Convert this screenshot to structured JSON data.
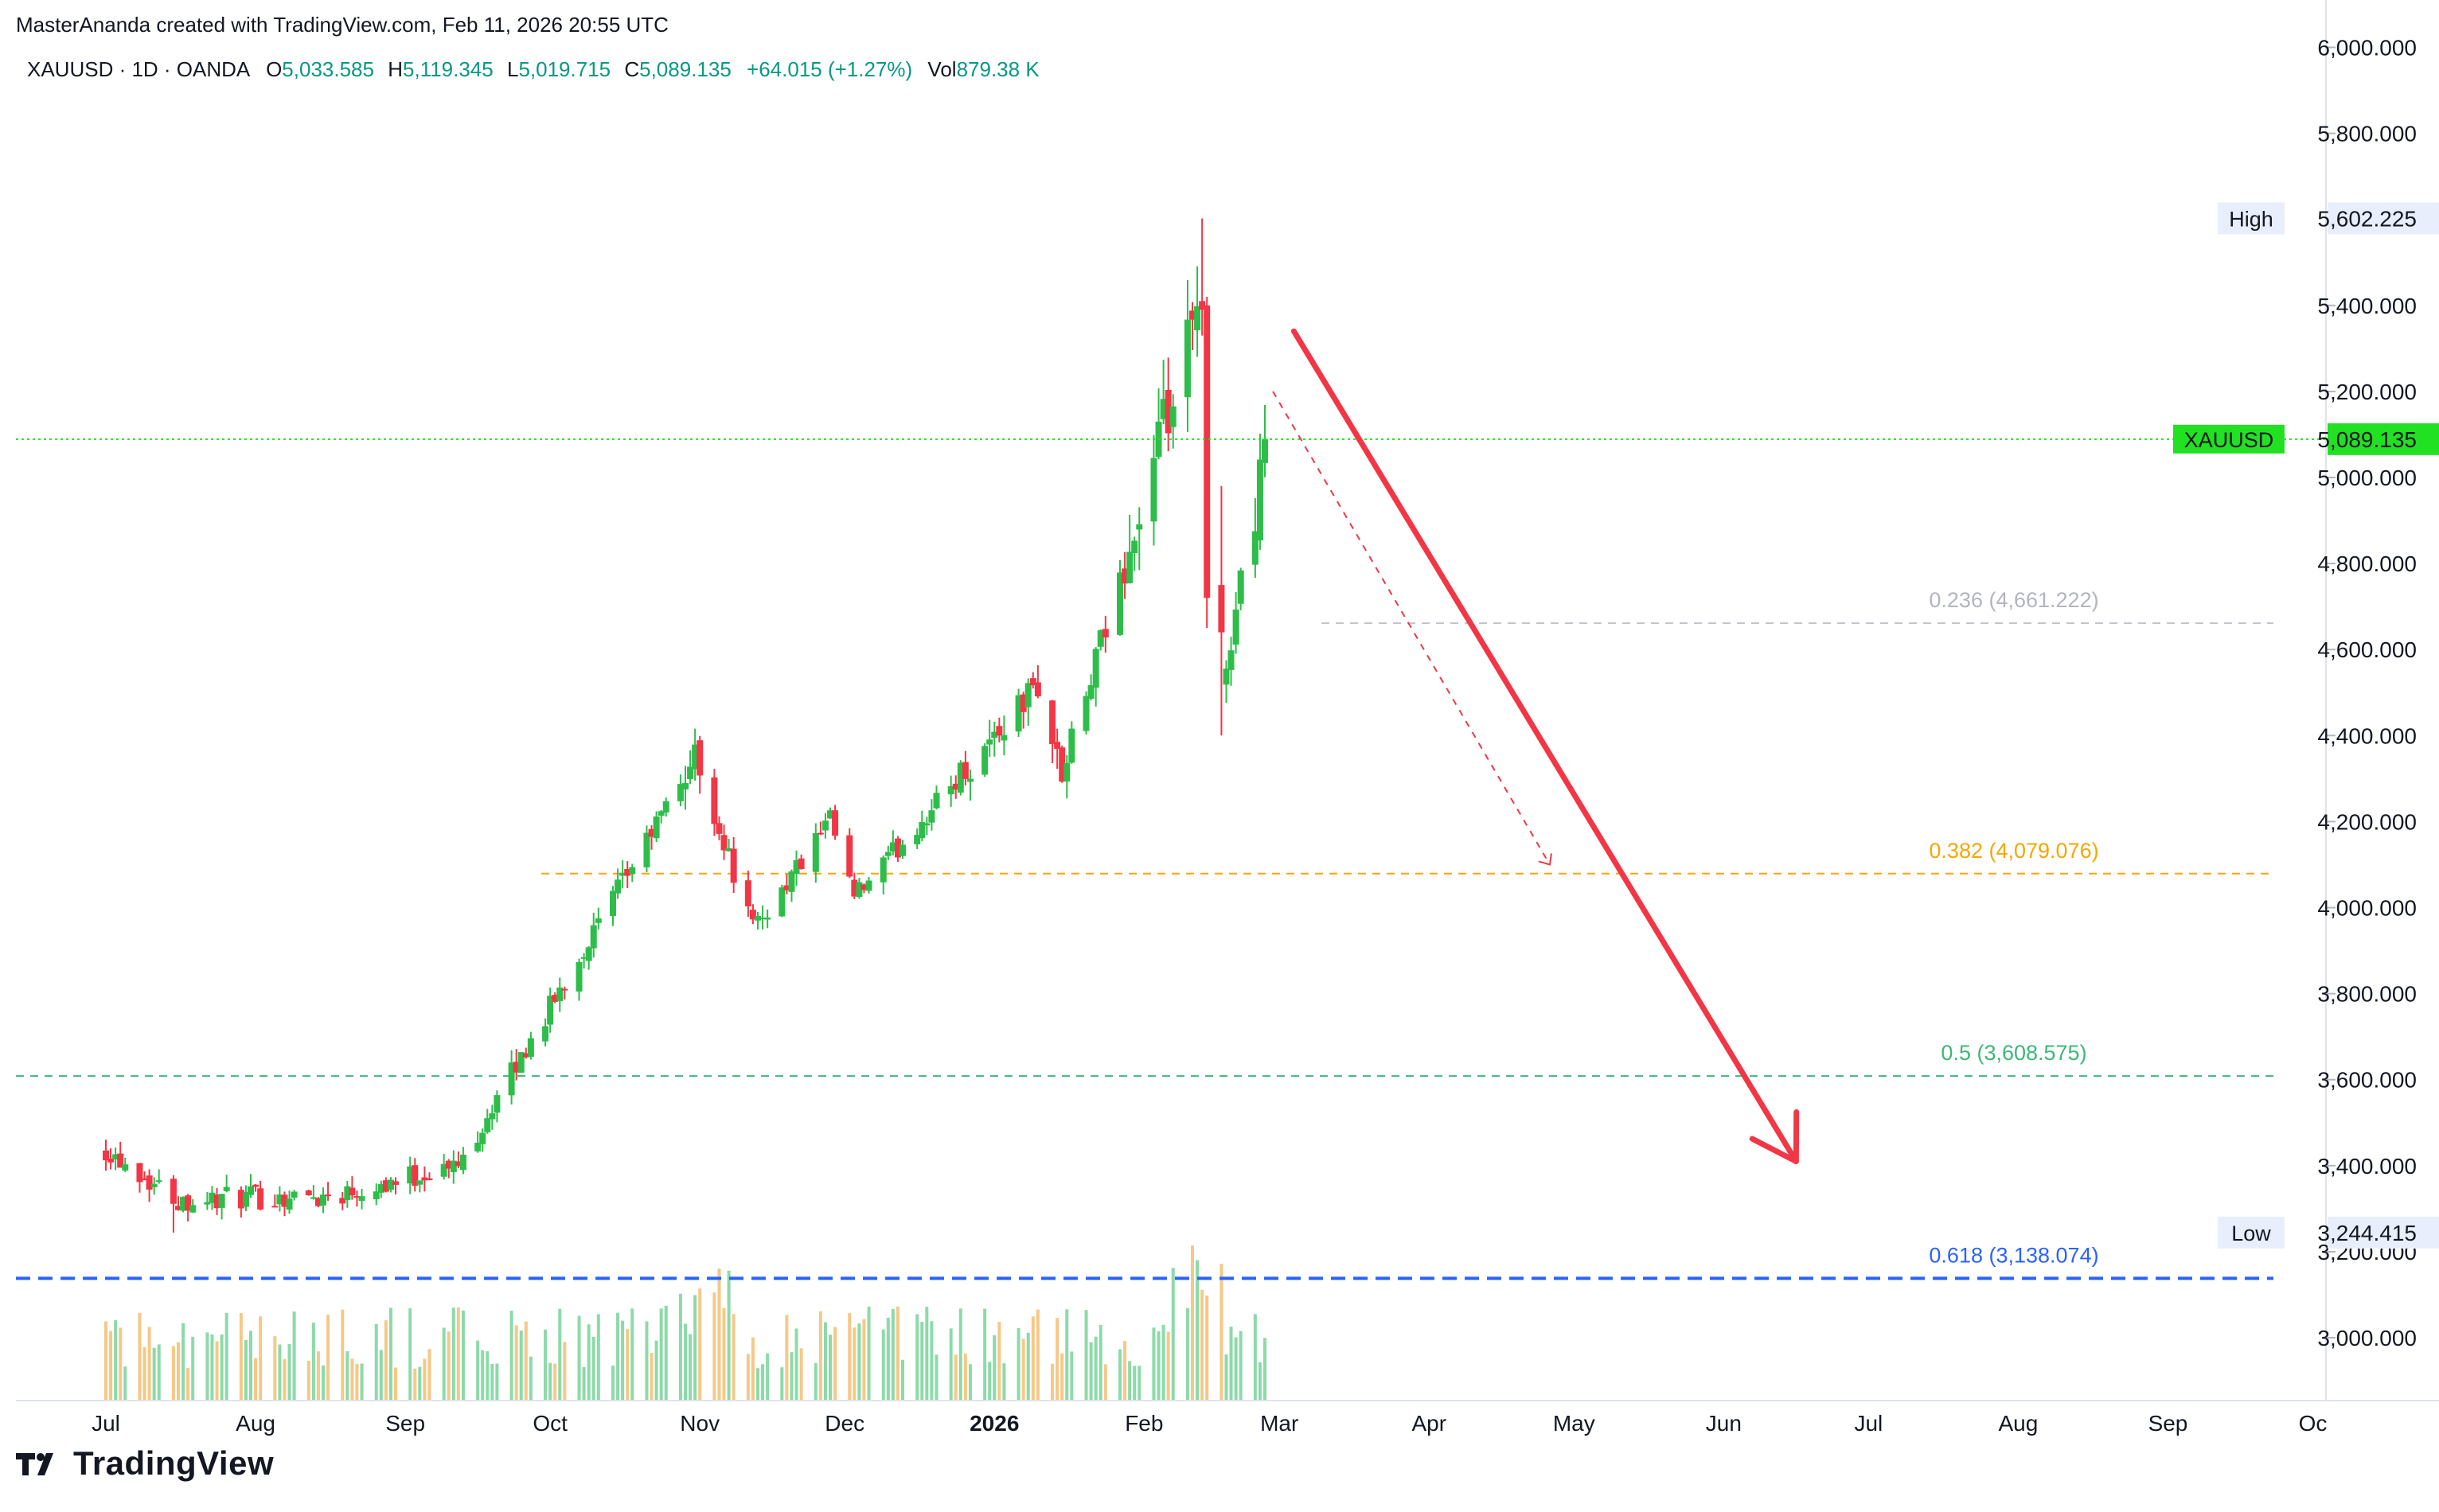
{
  "header": {
    "credit": "MasterAnanda created with TradingView.com, Feb 11, 2026 20:55 UTC",
    "symbol_line": "XAUUSD · 1D · OANDA",
    "o_label": "O",
    "o_value": "5,033.585",
    "h_label": "H",
    "h_value": "5,119.345",
    "l_label": "L",
    "l_value": "5,019.715",
    "c_label": "C",
    "c_value": "5,089.135",
    "change": "+64.015 (+1.27%)",
    "vol_label": "Vol",
    "vol_value": "879.38 K"
  },
  "brand": {
    "name": "TradingView"
  },
  "colors": {
    "up": "#22ab94",
    "up_candle": "#2ebd4a",
    "down": "#f23645",
    "arrow": "#f23645",
    "last_price": "#22e022",
    "fib_236": "#b2b5be",
    "fib_382": "#f7a600",
    "fib_500": "#3cb878",
    "fib_618": "#2962ff"
  },
  "chart_data": {
    "type": "candlestick",
    "title": "XAUUSD · 1D · OANDA",
    "y_axis": {
      "ylim": [
        2850,
        6000
      ],
      "ticks": [
        "6,000.000",
        "5,800.000",
        "5,400.000",
        "5,200.000",
        "5,000.000",
        "4,800.000",
        "4,600.000",
        "4,400.000",
        "4,200.000",
        "4,000.000",
        "3,800.000",
        "3,600.000",
        "3,400.000",
        "3,200.000",
        "3,000.000"
      ],
      "tick_values": [
        6000,
        5800,
        5400,
        5200,
        5000,
        4800,
        4600,
        4400,
        4200,
        4000,
        3800,
        3600,
        3400,
        3200,
        3000
      ],
      "side": "right"
    },
    "x_axis": {
      "labels": [
        "Jul",
        "Aug",
        "Sep",
        "Oct",
        "Nov",
        "Dec",
        "2026",
        "Feb",
        "Mar",
        "Apr",
        "May",
        "Jun",
        "Jul",
        "Aug",
        "Sep",
        "Oc"
      ],
      "label_days": [
        15,
        46,
        77,
        107,
        138,
        168,
        199,
        230,
        258,
        289,
        319,
        350,
        380,
        411,
        442,
        472
      ]
    },
    "price_markers": [
      {
        "label": "High",
        "value": "5,602.225",
        "price": 5602.225
      },
      {
        "label": "XAUUSD",
        "value": "5,089.135",
        "price": 5089.135
      },
      {
        "label": "Low",
        "value": "3,244.415",
        "price": 3244.415
      }
    ],
    "fib_levels": [
      {
        "label": "0.236 (4,661.222)",
        "ratio": 0.236,
        "price": 4661.222
      },
      {
        "label": "0.382 (4,079.076)",
        "ratio": 0.382,
        "price": 4079.076
      },
      {
        "label": "0.5 (3,608.575)",
        "ratio": 0.5,
        "price": 3608.575
      },
      {
        "label": "0.618 (3,138.074)",
        "ratio": 0.618,
        "price": 3138.074
      }
    ],
    "key_points": [
      {
        "date": "2025-06-16",
        "price": 3440
      },
      {
        "date": "2025-07-01",
        "price": 3320
      },
      {
        "date": "2025-08-01",
        "price": 3330
      },
      {
        "date": "2025-08-28",
        "price": 3400
      },
      {
        "date": "2025-10-16",
        "price": 4350
      },
      {
        "date": "2025-10-28",
        "price": 3950
      },
      {
        "date": "2025-11-13",
        "price": 4200
      },
      {
        "date": "2025-11-18",
        "price": 4020
      },
      {
        "date": "2025-12-26",
        "price": 4520
      },
      {
        "date": "2025-12-31",
        "price": 4300
      },
      {
        "date": "2026-01-29",
        "price": 5400
      },
      {
        "date": "2026-02-02",
        "price": 4500
      },
      {
        "date": "2026-02-11",
        "price": 5089.135
      }
    ],
    "projection": [
      {
        "date": "2026-02-17",
        "price": 5340
      },
      {
        "date": "2026-06-01",
        "price": 3410
      }
    ]
  }
}
